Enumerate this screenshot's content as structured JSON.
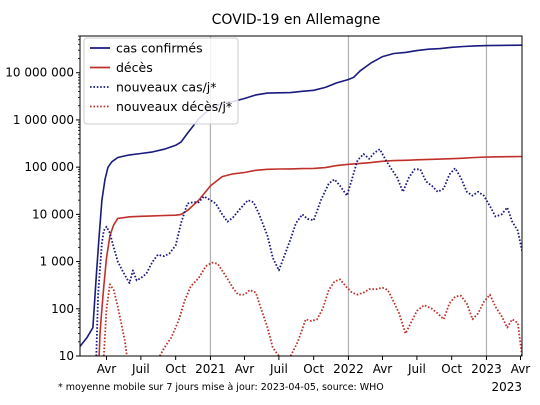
{
  "chart_data": {
    "type": "line",
    "title": "COVID-19 en Allemagne",
    "y_scale": "log",
    "ylim": [
      10,
      60000000
    ],
    "xlim": [
      "2020-01-22",
      "2023-04-05"
    ],
    "y_ticks": [
      {
        "value": 10,
        "label": "10"
      },
      {
        "value": 100,
        "label": "100"
      },
      {
        "value": 1000,
        "label": "1 000"
      },
      {
        "value": 10000,
        "label": "10 000"
      },
      {
        "value": 100000,
        "label": "100 000"
      },
      {
        "value": 1000000,
        "label": "1 000 000"
      },
      {
        "value": 10000000,
        "label": "10 000 000"
      }
    ],
    "x_ticks": [
      {
        "date": "2020-04-01",
        "label": "Avr"
      },
      {
        "date": "2020-07-01",
        "label": "Juil"
      },
      {
        "date": "2020-10-01",
        "label": "Oct"
      },
      {
        "date": "2021-01-01",
        "label": "2021"
      },
      {
        "date": "2021-04-01",
        "label": "Avr"
      },
      {
        "date": "2021-07-01",
        "label": "Juil"
      },
      {
        "date": "2021-10-01",
        "label": "Oct"
      },
      {
        "date": "2022-01-01",
        "label": "2022"
      },
      {
        "date": "2022-04-01",
        "label": "Avr"
      },
      {
        "date": "2022-07-01",
        "label": "Juil"
      },
      {
        "date": "2022-10-01",
        "label": "Oct"
      },
      {
        "date": "2023-01-01",
        "label": "2023"
      },
      {
        "date": "2023-04-01",
        "label": "Avr"
      }
    ],
    "x_end_label": "2023",
    "grid": "vertical lines at year boundaries",
    "legend_position": "top-left",
    "series": [
      {
        "name": "cas confirmés",
        "color": "#1a1a80",
        "style": "solid",
        "points": [
          [
            "2020-01-22",
            16
          ],
          [
            "2020-02-10",
            25
          ],
          [
            "2020-02-25",
            40
          ],
          [
            "2020-03-05",
            500
          ],
          [
            "2020-03-12",
            3000
          ],
          [
            "2020-03-20",
            20000
          ],
          [
            "2020-03-28",
            55000
          ],
          [
            "2020-04-05",
            100000
          ],
          [
            "2020-04-15",
            130000
          ],
          [
            "2020-05-01",
            160000
          ],
          [
            "2020-06-01",
            182000
          ],
          [
            "2020-07-01",
            195000
          ],
          [
            "2020-08-01",
            210000
          ],
          [
            "2020-09-01",
            240000
          ],
          [
            "2020-10-01",
            290000
          ],
          [
            "2020-10-15",
            340000
          ],
          [
            "2020-11-01",
            520000
          ],
          [
            "2020-12-01",
            1050000
          ],
          [
            "2021-01-01",
            1750000
          ],
          [
            "2021-02-01",
            2250000
          ],
          [
            "2021-03-01",
            2450000
          ],
          [
            "2021-04-01",
            2850000
          ],
          [
            "2021-05-01",
            3400000
          ],
          [
            "2021-06-01",
            3700000
          ],
          [
            "2021-07-01",
            3750000
          ],
          [
            "2021-08-01",
            3800000
          ],
          [
            "2021-09-01",
            4050000
          ],
          [
            "2021-10-01",
            4250000
          ],
          [
            "2021-11-01",
            4900000
          ],
          [
            "2021-12-01",
            6100000
          ],
          [
            "2022-01-01",
            7200000
          ],
          [
            "2022-01-15",
            8000000
          ],
          [
            "2022-02-01",
            11000000
          ],
          [
            "2022-03-01",
            16000000
          ],
          [
            "2022-04-01",
            22000000
          ],
          [
            "2022-05-01",
            25500000
          ],
          [
            "2022-06-01",
            27000000
          ],
          [
            "2022-07-01",
            29500000
          ],
          [
            "2022-08-01",
            31500000
          ],
          [
            "2022-09-01",
            32500000
          ],
          [
            "2022-10-01",
            34500000
          ],
          [
            "2022-11-01",
            36000000
          ],
          [
            "2022-12-01",
            37000000
          ],
          [
            "2023-01-01",
            37500000
          ],
          [
            "2023-02-01",
            38000000
          ],
          [
            "2023-04-05",
            38400000
          ]
        ]
      },
      {
        "name": "décès",
        "color": "#c0302a",
        "style": "solid",
        "points": [
          [
            "2020-03-08",
            1
          ],
          [
            "2020-03-15",
            30
          ],
          [
            "2020-03-20",
            100
          ],
          [
            "2020-03-25",
            300
          ],
          [
            "2020-04-01",
            1200
          ],
          [
            "2020-04-10",
            3500
          ],
          [
            "2020-04-20",
            6000
          ],
          [
            "2020-05-01",
            8200
          ],
          [
            "2020-06-01",
            8900
          ],
          [
            "2020-07-01",
            9100
          ],
          [
            "2020-08-01",
            9300
          ],
          [
            "2020-09-01",
            9450
          ],
          [
            "2020-10-01",
            9600
          ],
          [
            "2020-10-15",
            10000
          ],
          [
            "2020-11-01",
            12000
          ],
          [
            "2020-12-01",
            20000
          ],
          [
            "2021-01-01",
            40000
          ],
          [
            "2021-02-01",
            63000
          ],
          [
            "2021-03-01",
            72000
          ],
          [
            "2021-04-01",
            77000
          ],
          [
            "2021-05-01",
            86000
          ],
          [
            "2021-06-01",
            90000
          ],
          [
            "2021-07-01",
            91500
          ],
          [
            "2021-08-01",
            92000
          ],
          [
            "2021-09-01",
            93000
          ],
          [
            "2021-10-01",
            94000
          ],
          [
            "2021-11-01",
            98000
          ],
          [
            "2021-12-01",
            108000
          ],
          [
            "2022-01-01",
            115000
          ],
          [
            "2022-02-01",
            120000
          ],
          [
            "2022-03-01",
            125000
          ],
          [
            "2022-04-01",
            133000
          ],
          [
            "2022-05-01",
            138000
          ],
          [
            "2022-06-01",
            140000
          ],
          [
            "2022-07-01",
            143000
          ],
          [
            "2022-08-01",
            146000
          ],
          [
            "2022-09-01",
            148000
          ],
          [
            "2022-10-01",
            151000
          ],
          [
            "2022-11-01",
            155000
          ],
          [
            "2022-12-01",
            160000
          ],
          [
            "2023-01-01",
            163000
          ],
          [
            "2023-02-01",
            166000
          ],
          [
            "2023-04-05",
            168000
          ]
        ]
      },
      {
        "name": "nouveaux cas/j*",
        "color": "#1a1a80",
        "style": "dotted",
        "points": [
          [
            "2020-03-05",
            10
          ],
          [
            "2020-03-10",
            200
          ],
          [
            "2020-03-20",
            2500
          ],
          [
            "2020-03-25",
            4500
          ],
          [
            "2020-04-01",
            5500
          ],
          [
            "2020-04-10",
            4000
          ],
          [
            "2020-04-20",
            2000
          ],
          [
            "2020-05-01",
            1000
          ],
          [
            "2020-05-15",
            600
          ],
          [
            "2020-06-01",
            350
          ],
          [
            "2020-06-10",
            650
          ],
          [
            "2020-06-20",
            400
          ],
          [
            "2020-07-01",
            450
          ],
          [
            "2020-07-15",
            550
          ],
          [
            "2020-08-01",
            1000
          ],
          [
            "2020-08-15",
            1400
          ],
          [
            "2020-09-01",
            1300
          ],
          [
            "2020-09-15",
            1500
          ],
          [
            "2020-10-01",
            2200
          ],
          [
            "2020-10-15",
            6500
          ],
          [
            "2020-11-01",
            17000
          ],
          [
            "2020-11-15",
            18000
          ],
          [
            "2020-12-01",
            18000
          ],
          [
            "2020-12-15",
            24000
          ],
          [
            "2021-01-01",
            20000
          ],
          [
            "2021-01-15",
            17000
          ],
          [
            "2021-02-01",
            10000
          ],
          [
            "2021-02-15",
            7000
          ],
          [
            "2021-03-01",
            8500
          ],
          [
            "2021-03-20",
            13000
          ],
          [
            "2021-04-10",
            20000
          ],
          [
            "2021-04-25",
            18000
          ],
          [
            "2021-05-10",
            10000
          ],
          [
            "2021-06-01",
            3500
          ],
          [
            "2021-06-15",
            1200
          ],
          [
            "2021-07-01",
            650
          ],
          [
            "2021-07-15",
            1300
          ],
          [
            "2021-08-01",
            3000
          ],
          [
            "2021-08-15",
            6500
          ],
          [
            "2021-09-01",
            10000
          ],
          [
            "2021-09-15",
            8000
          ],
          [
            "2021-10-01",
            7500
          ],
          [
            "2021-10-20",
            20000
          ],
          [
            "2021-11-10",
            45000
          ],
          [
            "2021-11-25",
            55000
          ],
          [
            "2021-12-10",
            40000
          ],
          [
            "2021-12-28",
            25000
          ],
          [
            "2022-01-10",
            55000
          ],
          [
            "2022-01-25",
            140000
          ],
          [
            "2022-02-10",
            190000
          ],
          [
            "2022-02-25",
            150000
          ],
          [
            "2022-03-10",
            200000
          ],
          [
            "2022-03-25",
            240000
          ],
          [
            "2022-04-10",
            140000
          ],
          [
            "2022-04-25",
            90000
          ],
          [
            "2022-05-10",
            60000
          ],
          [
            "2022-05-25",
            30000
          ],
          [
            "2022-06-10",
            60000
          ],
          [
            "2022-06-25",
            90000
          ],
          [
            "2022-07-10",
            90000
          ],
          [
            "2022-07-25",
            50000
          ],
          [
            "2022-08-10",
            40000
          ],
          [
            "2022-08-25",
            30000
          ],
          [
            "2022-09-10",
            35000
          ],
          [
            "2022-09-25",
            70000
          ],
          [
            "2022-10-10",
            95000
          ],
          [
            "2022-10-25",
            60000
          ],
          [
            "2022-11-10",
            30000
          ],
          [
            "2022-11-25",
            25000
          ],
          [
            "2022-12-10",
            30000
          ],
          [
            "2022-12-25",
            25000
          ],
          [
            "2023-01-10",
            15000
          ],
          [
            "2023-01-25",
            9000
          ],
          [
            "2023-02-10",
            10000
          ],
          [
            "2023-02-25",
            14000
          ],
          [
            "2023-03-10",
            7000
          ],
          [
            "2023-03-25",
            4500
          ],
          [
            "2023-04-05",
            1700
          ]
        ]
      },
      {
        "name": "nouveaux décès/j*",
        "color": "#c0302a",
        "style": "dotted",
        "points": [
          [
            "2020-03-25",
            10
          ],
          [
            "2020-04-01",
            100
          ],
          [
            "2020-04-10",
            330
          ],
          [
            "2020-04-20",
            250
          ],
          [
            "2020-05-01",
            110
          ],
          [
            "2020-05-10",
            50
          ],
          [
            "2020-05-20",
            20
          ],
          [
            "2020-05-25",
            10
          ],
          [
            null,
            null
          ],
          [
            "2020-08-20",
            10
          ],
          [
            "2020-09-01",
            15
          ],
          [
            "2020-09-20",
            25
          ],
          [
            "2020-10-10",
            60
          ],
          [
            "2020-10-25",
            150
          ],
          [
            "2020-11-10",
            300
          ],
          [
            "2020-12-01",
            450
          ],
          [
            "2020-12-20",
            800
          ],
          [
            "2021-01-05",
            950
          ],
          [
            "2021-01-20",
            900
          ],
          [
            "2021-02-10",
            500
          ],
          [
            "2021-03-01",
            280
          ],
          [
            "2021-03-15",
            200
          ],
          [
            "2021-04-01",
            200
          ],
          [
            "2021-04-15",
            250
          ],
          [
            "2021-05-01",
            220
          ],
          [
            "2021-05-15",
            100
          ],
          [
            "2021-06-01",
            40
          ],
          [
            "2021-06-15",
            15
          ],
          [
            "2021-07-01",
            10
          ],
          [
            null,
            null
          ],
          [
            "2021-08-01",
            10
          ],
          [
            "2021-08-20",
            20
          ],
          [
            "2021-09-10",
            60
          ],
          [
            "2021-09-25",
            55
          ],
          [
            "2021-10-10",
            60
          ],
          [
            "2021-10-25",
            100
          ],
          [
            "2021-11-10",
            250
          ],
          [
            "2021-11-25",
            380
          ],
          [
            "2021-12-10",
            420
          ],
          [
            "2021-12-25",
            300
          ],
          [
            "2022-01-10",
            220
          ],
          [
            "2022-01-25",
            200
          ],
          [
            "2022-02-10",
            220
          ],
          [
            "2022-02-25",
            260
          ],
          [
            "2022-03-15",
            260
          ],
          [
            "2022-04-01",
            280
          ],
          [
            "2022-04-15",
            250
          ],
          [
            "2022-05-01",
            140
          ],
          [
            "2022-05-15",
            80
          ],
          [
            "2022-06-01",
            30
          ],
          [
            "2022-06-15",
            50
          ],
          [
            "2022-07-01",
            90
          ],
          [
            "2022-07-20",
            120
          ],
          [
            "2022-08-10",
            100
          ],
          [
            "2022-08-25",
            80
          ],
          [
            "2022-09-10",
            60
          ],
          [
            "2022-09-25",
            130
          ],
          [
            "2022-10-10",
            180
          ],
          [
            "2022-10-25",
            190
          ],
          [
            "2022-11-10",
            130
          ],
          [
            "2022-11-25",
            60
          ],
          [
            "2022-12-10",
            80
          ],
          [
            "2022-12-25",
            140
          ],
          [
            "2023-01-10",
            200
          ],
          [
            "2023-01-25",
            110
          ],
          [
            "2023-02-10",
            70
          ],
          [
            "2023-02-25",
            40
          ],
          [
            "2023-03-10",
            60
          ],
          [
            "2023-03-25",
            50
          ],
          [
            "2023-04-05",
            10
          ]
        ]
      }
    ]
  },
  "footnote": "* moyenne mobile sur 7 jours  mise à jour: 2023-04-05, source: WHO"
}
